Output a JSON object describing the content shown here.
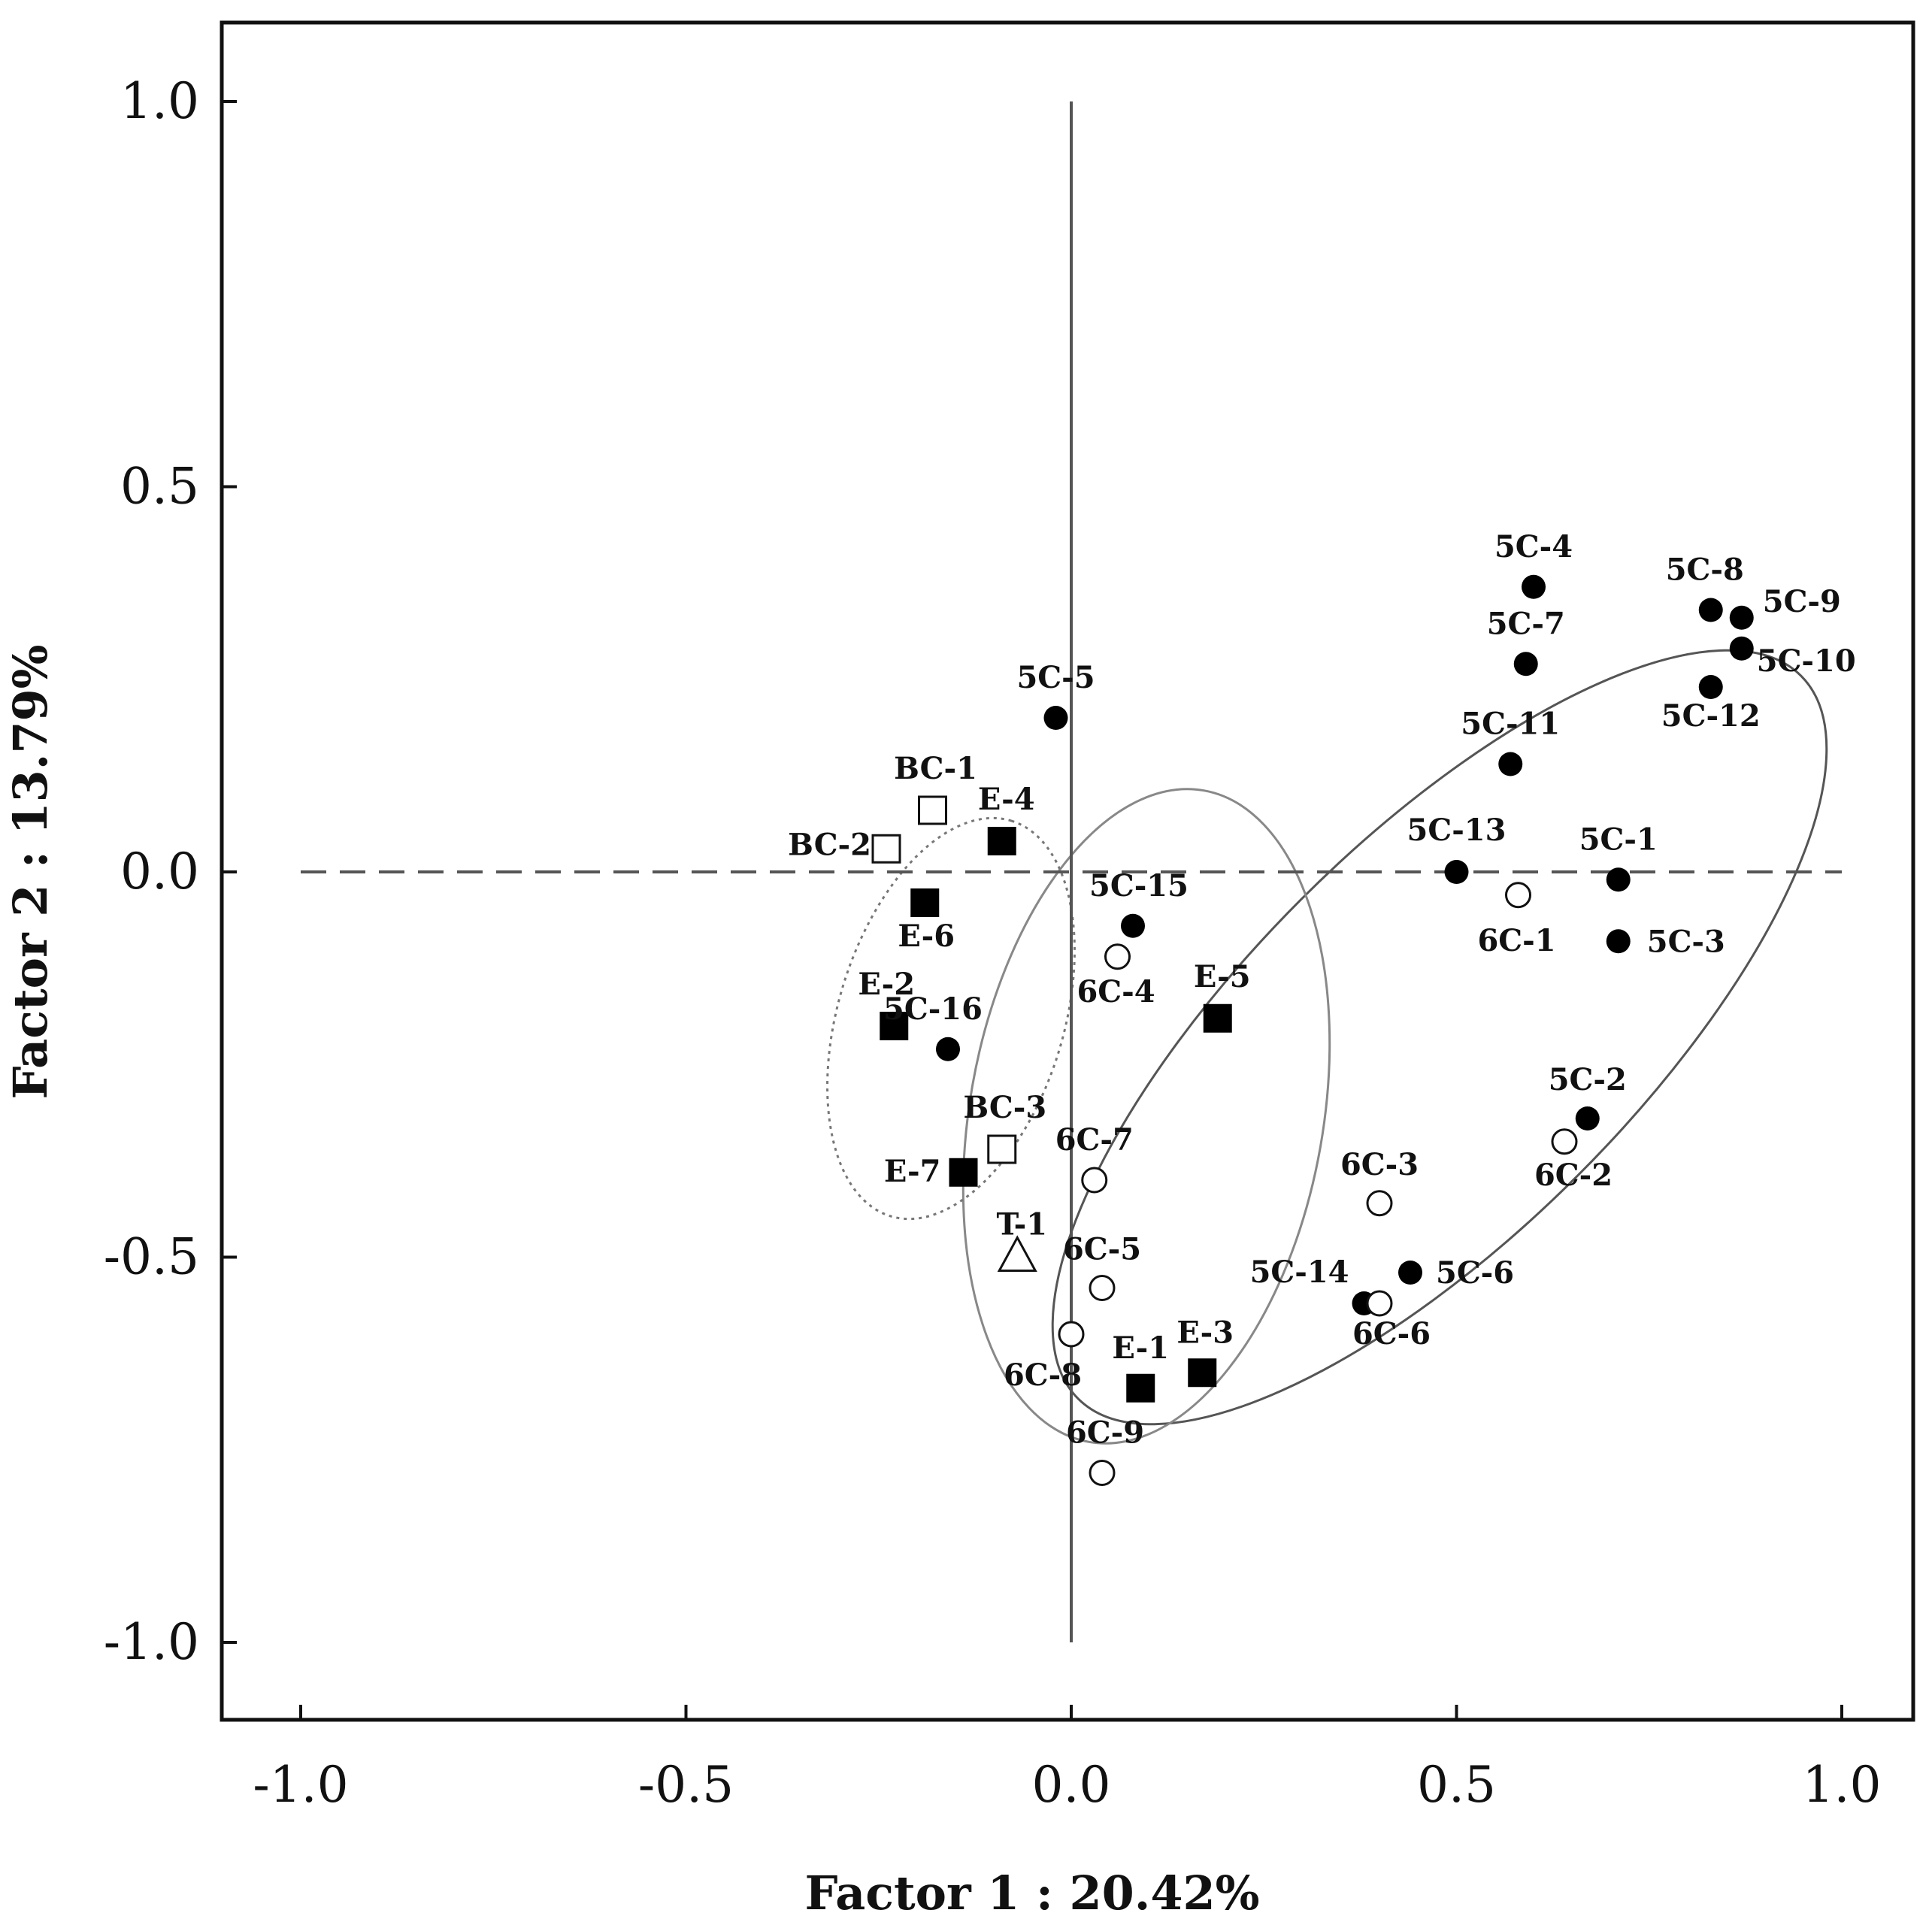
{
  "chart_data": {
    "type": "scatter",
    "title": "",
    "xlabel": "Factor 1 : 20.42%",
    "ylabel": "Factor 2 : 13.79%",
    "xlim": [
      -1.1,
      1.1
    ],
    "ylim": [
      -1.1,
      1.1
    ],
    "x_ticks": [
      -1.0,
      -0.5,
      0.0,
      0.5,
      1.0
    ],
    "y_ticks": [
      1.0,
      0.5,
      0.0,
      -0.5,
      -1.0
    ],
    "x_tick_labels": [
      "-1.0",
      "-0.5",
      "0.0",
      "0.5",
      "1.0"
    ],
    "y_tick_labels": [
      "1.0",
      "0.5",
      "0.0",
      "-0.5",
      "-1.0"
    ],
    "series": [
      {
        "name": "5C",
        "marker": "filled-circle",
        "points": [
          {
            "label": "5C-1",
            "x": 0.71,
            "y": -0.01
          },
          {
            "label": "5C-2",
            "x": 0.67,
            "y": -0.32
          },
          {
            "label": "5C-3",
            "x": 0.71,
            "y": -0.09
          },
          {
            "label": "5C-4",
            "x": 0.6,
            "y": 0.37
          },
          {
            "label": "5C-5",
            "x": -0.02,
            "y": 0.2
          },
          {
            "label": "5C-6",
            "x": 0.44,
            "y": -0.52
          },
          {
            "label": "5C-7",
            "x": 0.59,
            "y": 0.27
          },
          {
            "label": "5C-8",
            "x": 0.83,
            "y": 0.34
          },
          {
            "label": "5C-9",
            "x": 0.87,
            "y": 0.33
          },
          {
            "label": "5C-10",
            "x": 0.87,
            "y": 0.29
          },
          {
            "label": "5C-11",
            "x": 0.57,
            "y": 0.14
          },
          {
            "label": "5C-12",
            "x": 0.83,
            "y": 0.24
          },
          {
            "label": "5C-13",
            "x": 0.5,
            "y": 0.0
          },
          {
            "label": "5C-14",
            "x": 0.38,
            "y": -0.56
          },
          {
            "label": "5C-15",
            "x": 0.08,
            "y": -0.07
          },
          {
            "label": "5C-16",
            "x": -0.16,
            "y": -0.23
          }
        ]
      },
      {
        "name": "6C",
        "marker": "open-circle",
        "points": [
          {
            "label": "6C-1",
            "x": 0.58,
            "y": -0.03
          },
          {
            "label": "6C-2",
            "x": 0.64,
            "y": -0.35
          },
          {
            "label": "6C-3",
            "x": 0.4,
            "y": -0.43
          },
          {
            "label": "6C-4",
            "x": 0.06,
            "y": -0.11
          },
          {
            "label": "6C-5",
            "x": 0.04,
            "y": -0.54
          },
          {
            "label": "6C-6",
            "x": 0.4,
            "y": -0.56
          },
          {
            "label": "6C-7",
            "x": 0.03,
            "y": -0.4
          },
          {
            "label": "6C-8",
            "x": 0.0,
            "y": -0.6
          },
          {
            "label": "6C-9",
            "x": 0.04,
            "y": -0.78
          }
        ]
      },
      {
        "name": "E",
        "marker": "filled-square",
        "points": [
          {
            "label": "E-1",
            "x": 0.09,
            "y": -0.67
          },
          {
            "label": "E-2",
            "x": -0.23,
            "y": -0.2
          },
          {
            "label": "E-3",
            "x": 0.17,
            "y": -0.65
          },
          {
            "label": "E-4",
            "x": -0.09,
            "y": 0.04
          },
          {
            "label": "E-5",
            "x": 0.19,
            "y": -0.19
          },
          {
            "label": "E-6",
            "x": -0.19,
            "y": -0.04
          },
          {
            "label": "E-7",
            "x": -0.14,
            "y": -0.39
          }
        ]
      },
      {
        "name": "BC",
        "marker": "open-square",
        "points": [
          {
            "label": "BC-1",
            "x": -0.18,
            "y": 0.08
          },
          {
            "label": "BC-2",
            "x": -0.24,
            "y": 0.03
          },
          {
            "label": "BC-3",
            "x": -0.09,
            "y": -0.36
          }
        ]
      },
      {
        "name": "T",
        "marker": "open-triangle",
        "points": [
          {
            "label": "T-1",
            "x": -0.07,
            "y": -0.5
          }
        ]
      }
    ],
    "groupings": [
      {
        "name": "5C/6C ellipse",
        "style": "solid"
      },
      {
        "name": "E ellipse",
        "style": "solid-light"
      },
      {
        "name": "BC ellipse",
        "style": "dotted"
      }
    ],
    "reference_lines": {
      "vertical_x0": "solid",
      "horizontal_y0": "dashed"
    },
    "grid": false,
    "legend": "none"
  }
}
